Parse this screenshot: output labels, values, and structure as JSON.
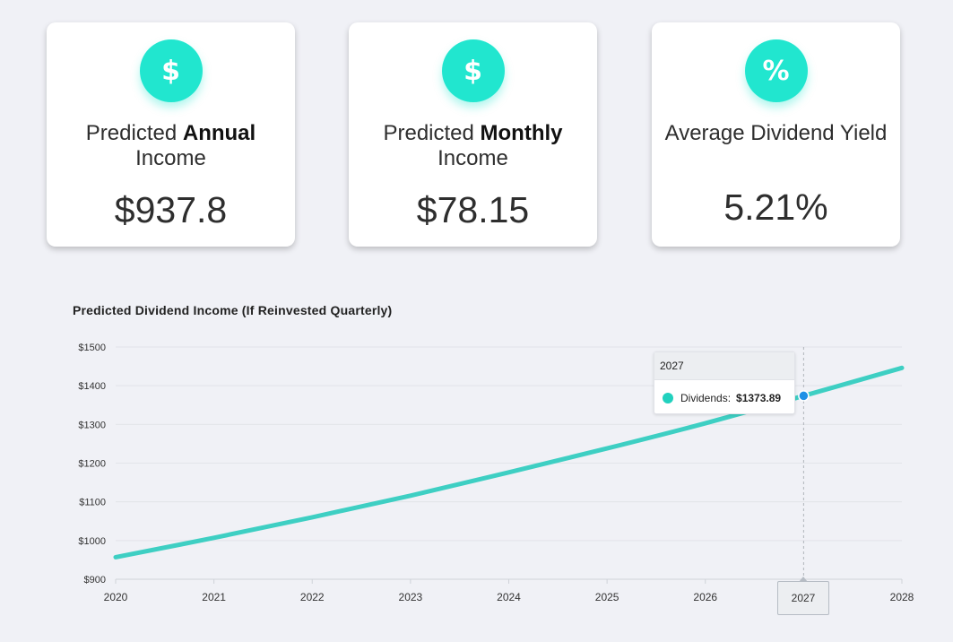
{
  "cards": [
    {
      "icon": "dollar-icon",
      "glyph": "$",
      "title_prefix": "Predicted ",
      "title_bold": "Annual",
      "title_suffix": "Income",
      "value": "$937.8"
    },
    {
      "icon": "dollar-icon",
      "glyph": "$",
      "title_prefix": "Predicted ",
      "title_bold": "Monthly",
      "title_suffix": "Income",
      "value": "$78.15"
    },
    {
      "icon": "percent-icon",
      "glyph": "%",
      "title": "Average Dividend Yield",
      "value": "5.21%"
    }
  ],
  "chart": {
    "title": "Predicted Dividend Income (If Reinvested Quarterly)",
    "tooltip": {
      "header": "2027",
      "series_label": "Dividends:",
      "value": "$1373.89"
    },
    "x_tooltip": "2027"
  },
  "chart_data": {
    "type": "line",
    "title": "Predicted Dividend Income (If Reinvested Quarterly)",
    "xlabel": "",
    "ylabel": "",
    "ylim": [
      900,
      1500
    ],
    "xlim": [
      2020,
      2028
    ],
    "y_ticks": [
      "$900",
      "$1000",
      "$1100",
      "$1200",
      "$1300",
      "$1400",
      "$1500"
    ],
    "x_ticks": [
      "2020",
      "2021",
      "2022",
      "2023",
      "2024",
      "2025",
      "2026",
      "2027",
      "2028"
    ],
    "grid": true,
    "series": [
      {
        "name": "Dividends",
        "color": "#3ecfc3",
        "x": [
          2020,
          2021,
          2022,
          2023,
          2024,
          2025,
          2026,
          2027,
          2028
        ],
        "y": [
          957,
          1007,
          1060,
          1116,
          1176,
          1238,
          1303,
          1373.89,
          1446
        ]
      }
    ],
    "highlight": {
      "x": 2027,
      "y": 1373.89,
      "color": "#1e90e6"
    }
  }
}
